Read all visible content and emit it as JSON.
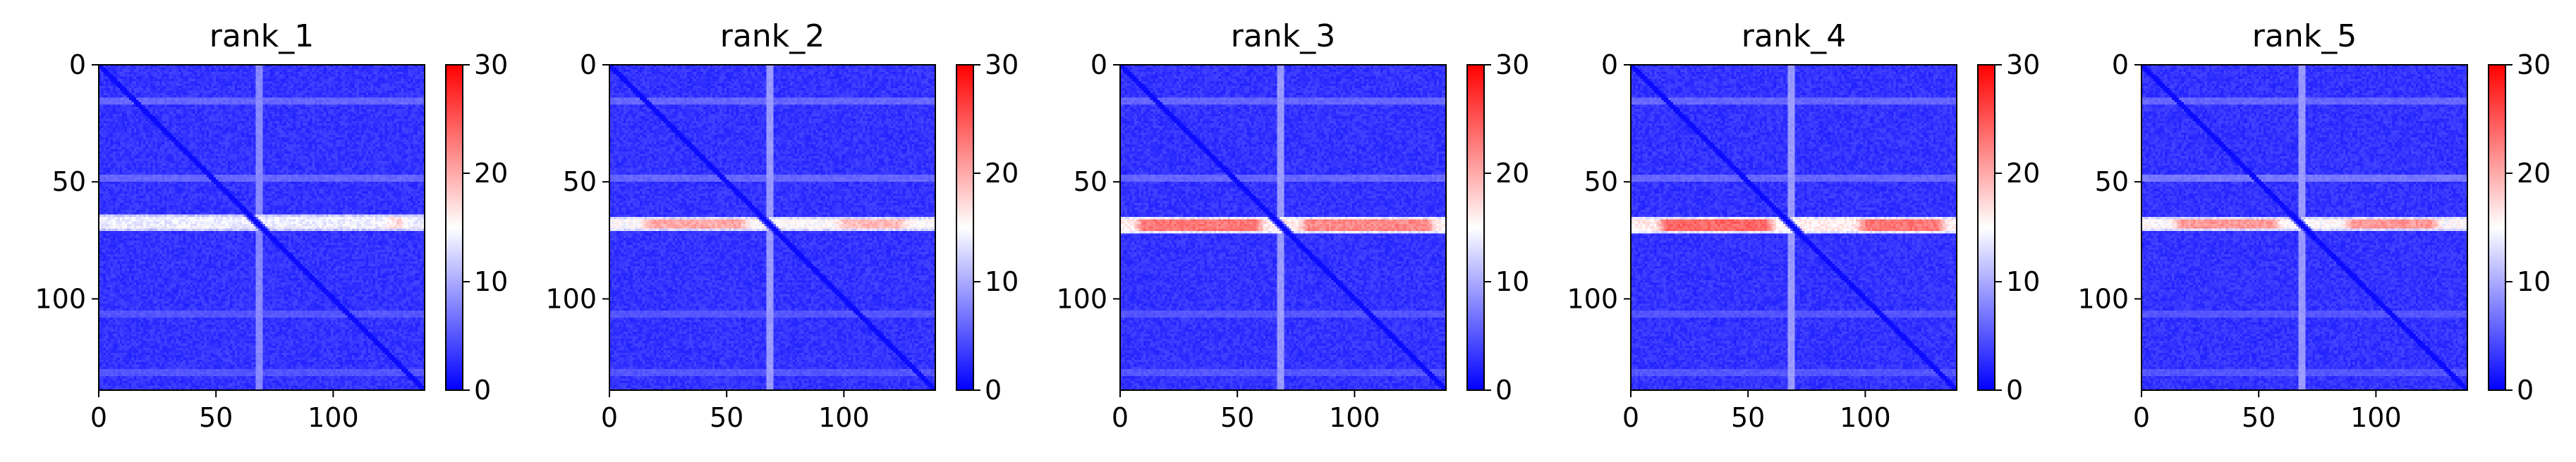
{
  "chart_data": [
    {
      "type": "heatmap",
      "title": "rank_1",
      "matrix_size": 139,
      "x_ticks": [
        "0",
        "50",
        "100"
      ],
      "y_ticks": [
        "0",
        "50",
        "100"
      ],
      "xlim": [
        0,
        139
      ],
      "ylim": [
        139,
        0
      ],
      "colorbar": {
        "ticks": [
          "0",
          "10",
          "20",
          "30"
        ],
        "range": [
          0,
          30
        ],
        "colormap": "bwr",
        "colors": [
          "#0000ff",
          "#ffffff",
          "#ff0000"
        ]
      },
      "features": {
        "background_value": 3,
        "diagonal_value": 0.5,
        "vertical_stripe": {
          "col": 68,
          "value": 8
        },
        "horizontal_band": {
          "rows": [
            64,
            70
          ],
          "value": 14,
          "peak_segments": [
            [
              120,
              133,
              17
            ]
          ]
        },
        "faint_row_lines": [
          [
            15,
            6
          ],
          [
            48,
            6
          ],
          [
            106,
            5
          ],
          [
            131,
            5
          ]
        ]
      }
    },
    {
      "type": "heatmap",
      "title": "rank_2",
      "matrix_size": 139,
      "x_ticks": [
        "0",
        "50",
        "100"
      ],
      "y_ticks": [
        "0",
        "50",
        "100"
      ],
      "xlim": [
        0,
        139
      ],
      "ylim": [
        139,
        0
      ],
      "colorbar": {
        "ticks": [
          "0",
          "10",
          "20",
          "30"
        ],
        "range": [
          0,
          30
        ],
        "colormap": "bwr",
        "colors": [
          "#0000ff",
          "#ffffff",
          "#ff0000"
        ]
      },
      "features": {
        "background_value": 3,
        "diagonal_value": 0.5,
        "vertical_stripe": {
          "col": 68,
          "value": 9
        },
        "horizontal_band": {
          "rows": [
            65,
            70
          ],
          "value": 15,
          "peak_segments": [
            [
              12,
              60,
              20
            ],
            [
              95,
              128,
              19
            ]
          ]
        },
        "faint_row_lines": [
          [
            15,
            6
          ],
          [
            48,
            6
          ],
          [
            106,
            5
          ],
          [
            131,
            5
          ]
        ]
      }
    },
    {
      "type": "heatmap",
      "title": "rank_3",
      "matrix_size": 139,
      "x_ticks": [
        "0",
        "50",
        "100"
      ],
      "y_ticks": [
        "0",
        "50",
        "100"
      ],
      "xlim": [
        0,
        139
      ],
      "ylim": [
        139,
        0
      ],
      "colorbar": {
        "ticks": [
          "0",
          "10",
          "20",
          "30"
        ],
        "range": [
          0,
          30
        ],
        "colormap": "bwr",
        "colors": [
          "#0000ff",
          "#ffffff",
          "#ff0000"
        ]
      },
      "features": {
        "background_value": 3,
        "diagonal_value": 0.5,
        "vertical_stripe": {
          "col": 68,
          "value": 9
        },
        "horizontal_band": {
          "rows": [
            65,
            71
          ],
          "value": 16,
          "peak_segments": [
            [
              5,
              62,
              23
            ],
            [
              75,
              135,
              22
            ]
          ]
        },
        "faint_row_lines": [
          [
            15,
            6
          ],
          [
            48,
            6
          ],
          [
            106,
            5
          ],
          [
            131,
            5
          ]
        ]
      }
    },
    {
      "type": "heatmap",
      "title": "rank_4",
      "matrix_size": 139,
      "x_ticks": [
        "0",
        "50",
        "100"
      ],
      "y_ticks": [
        "0",
        "50",
        "100"
      ],
      "xlim": [
        0,
        139
      ],
      "ylim": [
        139,
        0
      ],
      "colorbar": {
        "ticks": [
          "0",
          "10",
          "20",
          "30"
        ],
        "range": [
          0,
          30
        ],
        "colormap": "bwr",
        "colors": [
          "#0000ff",
          "#ffffff",
          "#ff0000"
        ]
      },
      "features": {
        "background_value": 3,
        "diagonal_value": 0.5,
        "vertical_stripe": {
          "col": 68,
          "value": 9
        },
        "horizontal_band": {
          "rows": [
            65,
            71
          ],
          "value": 16,
          "peak_segments": [
            [
              10,
              62,
              24
            ],
            [
              95,
              135,
              23
            ]
          ]
        },
        "faint_row_lines": [
          [
            15,
            6
          ],
          [
            48,
            6
          ],
          [
            106,
            5
          ],
          [
            131,
            5
          ]
        ]
      }
    },
    {
      "type": "heatmap",
      "title": "rank_5",
      "matrix_size": 139,
      "x_ticks": [
        "0",
        "50",
        "100"
      ],
      "y_ticks": [
        "0",
        "50",
        "100"
      ],
      "xlim": [
        0,
        139
      ],
      "ylim": [
        139,
        0
      ],
      "colorbar": {
        "ticks": [
          "0",
          "10",
          "20",
          "30"
        ],
        "range": [
          0,
          30
        ],
        "colormap": "bwr",
        "colors": [
          "#0000ff",
          "#ffffff",
          "#ff0000"
        ]
      },
      "features": {
        "background_value": 3,
        "diagonal_value": 0.5,
        "vertical_stripe": {
          "col": 68,
          "value": 9
        },
        "horizontal_band": {
          "rows": [
            65,
            70
          ],
          "value": 15,
          "peak_segments": [
            [
              12,
              60,
              21
            ],
            [
              85,
              128,
              21
            ]
          ]
        },
        "faint_row_lines": [
          [
            15,
            6
          ],
          [
            48,
            7
          ],
          [
            106,
            5
          ],
          [
            131,
            5
          ]
        ]
      }
    }
  ]
}
